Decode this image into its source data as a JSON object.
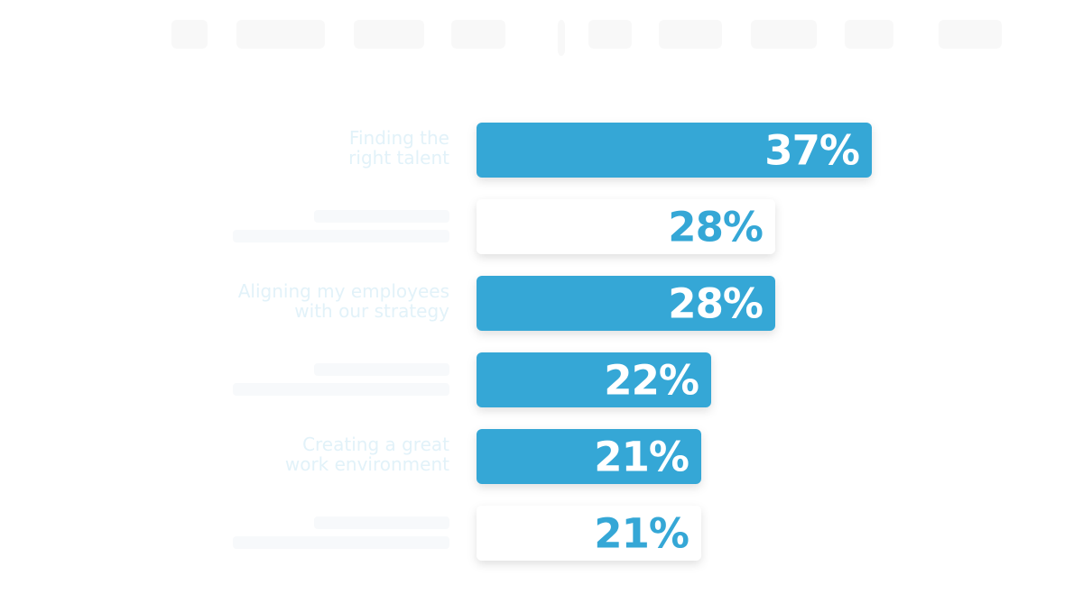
{
  "colors": {
    "accent": "#35a7d6",
    "label": "#e2f2f9",
    "white_bar": "#ffffff",
    "faded_label": "#f1f5f8",
    "faded_title": "#ececec"
  },
  "chart_data": {
    "type": "bar",
    "orientation": "horizontal",
    "categories": [
      "Finding the right talent",
      "",
      "Aligning my employees with our strategy",
      "",
      "Creating a great work environment",
      ""
    ],
    "label_lines": [
      [
        "Finding the",
        "right talent"
      ],
      [
        "",
        ""
      ],
      [
        "Aligning my employees",
        "with our strategy"
      ],
      [
        "",
        ""
      ],
      [
        "Creating a great",
        "work environment"
      ],
      [
        "",
        ""
      ]
    ],
    "values": [
      37,
      28,
      28,
      22,
      21,
      21
    ],
    "value_labels": [
      "37%",
      "28%",
      "28%",
      "22%",
      "21%",
      "21%"
    ],
    "bar_styles": [
      "filled",
      "outline",
      "filled",
      "filled",
      "filled",
      "outline"
    ],
    "unit": "%",
    "xlim": [
      0,
      37
    ],
    "grid": false,
    "legend": "none"
  }
}
